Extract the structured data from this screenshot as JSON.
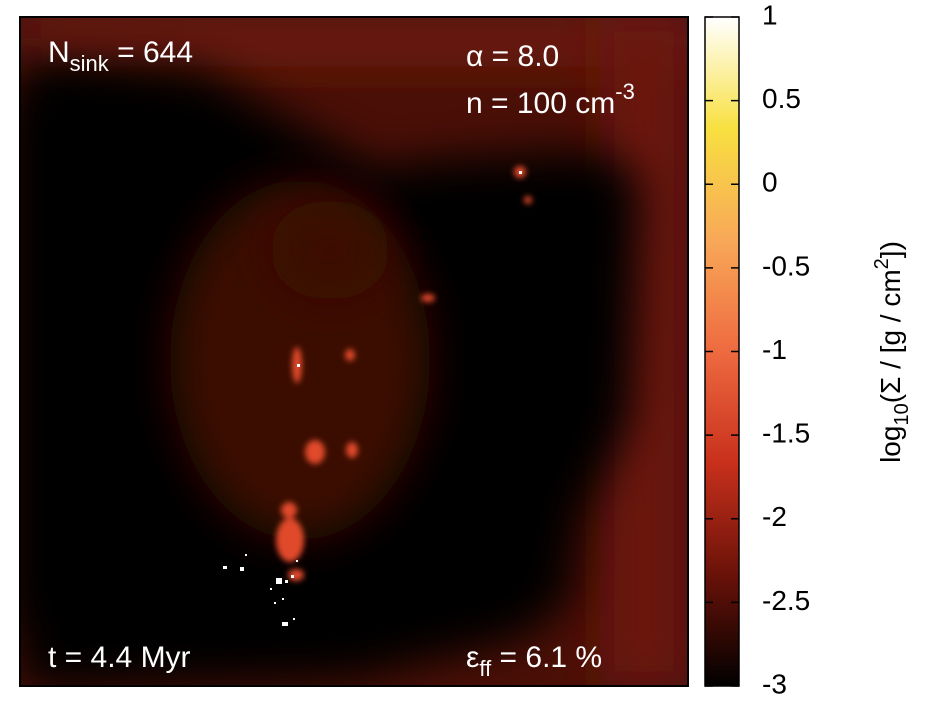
{
  "chart_data": {
    "type": "image",
    "annotations": [
      [
        "N",
        "sink",
        " = 644"
      ],
      [
        "α = 8.0"
      ],
      [
        "n = 100 cm",
        "-3"
      ],
      [
        "t = 4.4 Myr"
      ],
      [
        "ε",
        "ff",
        " = 6.1 %"
      ]
    ],
    "colorbar": {
      "label": [
        "log",
        "10",
        "(Σ / [g / cm",
        "2",
        "])"
      ],
      "clim": [
        -3,
        1
      ],
      "ticks": [
        -3,
        -2.5,
        -2,
        -1.5,
        -1,
        -0.5,
        0,
        0.5,
        1
      ],
      "colormap": [
        "#000000",
        "#6a1208",
        "#c8301c",
        "#ee6a40",
        "#f8a858",
        "#f8e040",
        "#ffffff"
      ]
    }
  }
}
